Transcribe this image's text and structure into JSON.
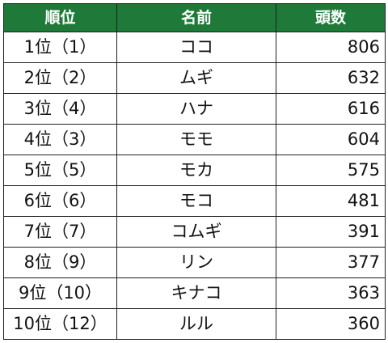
{
  "header": {
    "rank": "順位",
    "name": "名前",
    "count": "頭数"
  },
  "colors": {
    "header_bg": "#1f7a3a",
    "header_text": "#ffffff",
    "border": "#1f1f1f"
  },
  "rows": [
    {
      "rank": "1位（1）",
      "name": "ココ",
      "count": "806"
    },
    {
      "rank": "2位（2）",
      "name": "ムギ",
      "count": "632"
    },
    {
      "rank": "3位（4）",
      "name": "ハナ",
      "count": "616"
    },
    {
      "rank": "4位（3）",
      "name": "モモ",
      "count": "604"
    },
    {
      "rank": "5位（5）",
      "name": "モカ",
      "count": "575"
    },
    {
      "rank": "6位（6）",
      "name": "モコ",
      "count": "481"
    },
    {
      "rank": "7位（7）",
      "name": "コムギ",
      "count": "391"
    },
    {
      "rank": "8位（9）",
      "name": "リン",
      "count": "377"
    },
    {
      "rank": "9位（10）",
      "name": "キナコ",
      "count": "363"
    },
    {
      "rank": "10位（12）",
      "name": "ルル",
      "count": "360"
    }
  ]
}
